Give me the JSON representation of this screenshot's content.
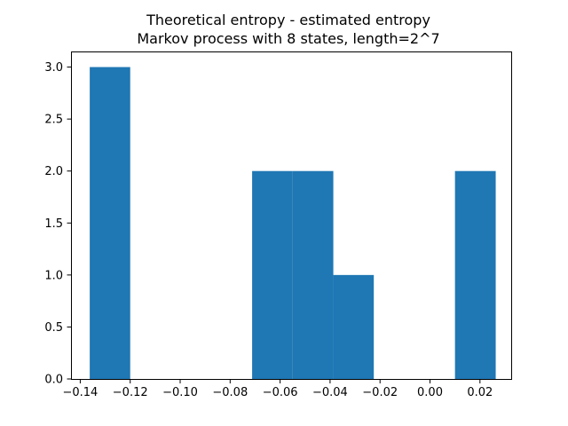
{
  "chart_data": {
    "type": "bar",
    "title": "Theoretical entropy - estimated entropy",
    "subtitle": "Markov process with 8 states, length=2^7",
    "xlabel": "",
    "ylabel": "",
    "xlim": [
      -0.1437,
      0.0325
    ],
    "ylim": [
      0,
      3.15
    ],
    "bin_edges": [
      -0.1362,
      -0.12,
      -0.1037,
      -0.0875,
      -0.0712,
      -0.055,
      -0.0387,
      -0.0225,
      -0.0062,
      0.01,
      0.0263
    ],
    "values": [
      3,
      0,
      0,
      0,
      2,
      2,
      1,
      0,
      0,
      2
    ],
    "x_ticks": [
      {
        "value": -0.14,
        "label": "−0.14"
      },
      {
        "value": -0.12,
        "label": "−0.12"
      },
      {
        "value": -0.1,
        "label": "−0.10"
      },
      {
        "value": -0.08,
        "label": "−0.08"
      },
      {
        "value": -0.06,
        "label": "−0.06"
      },
      {
        "value": -0.04,
        "label": "−0.04"
      },
      {
        "value": -0.02,
        "label": "−0.02"
      },
      {
        "value": 0.0,
        "label": "0.00"
      },
      {
        "value": 0.02,
        "label": "0.02"
      }
    ],
    "y_ticks": [
      {
        "value": 0.0,
        "label": "0.0"
      },
      {
        "value": 0.5,
        "label": "0.5"
      },
      {
        "value": 1.0,
        "label": "1.0"
      },
      {
        "value": 1.5,
        "label": "1.5"
      },
      {
        "value": 2.0,
        "label": "2.0"
      },
      {
        "value": 2.5,
        "label": "2.5"
      },
      {
        "value": 3.0,
        "label": "3.0"
      }
    ],
    "bar_color": "#1f77b4",
    "grid": false,
    "legend": "none"
  }
}
